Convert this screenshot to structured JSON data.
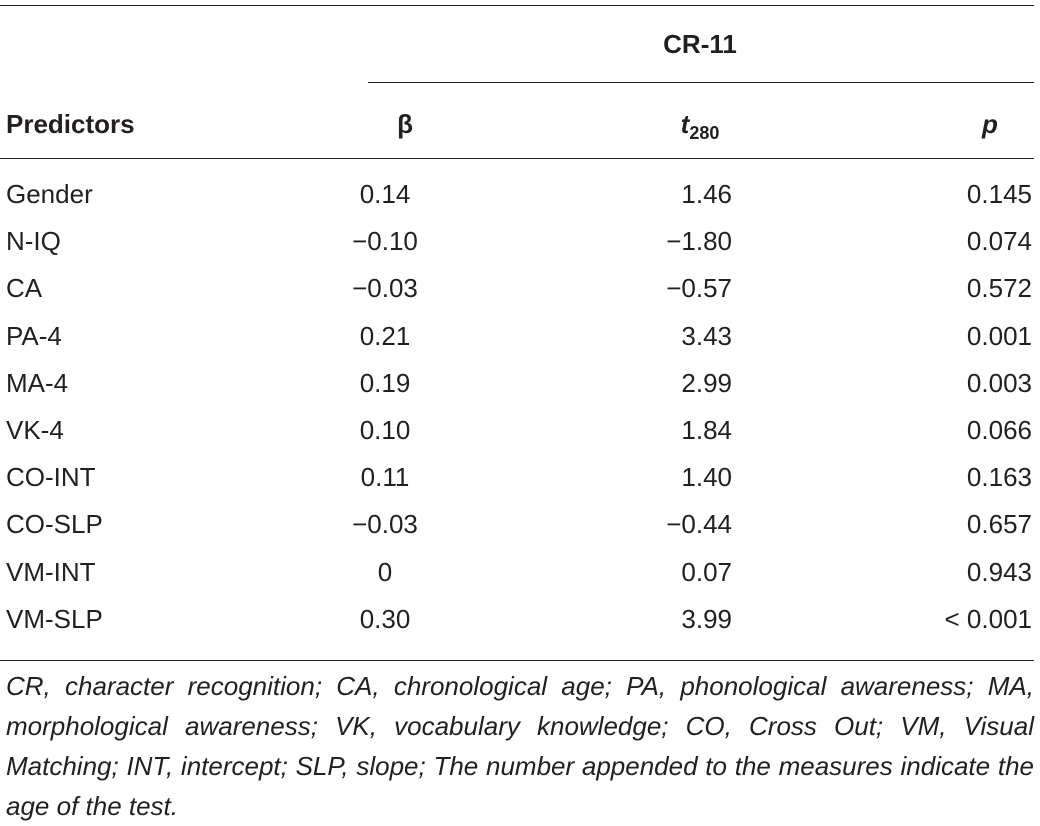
{
  "table": {
    "group_header": "CR-11",
    "columns": {
      "predictors": "Predictors",
      "beta": "β",
      "t": "t",
      "t_sub": "280",
      "p": "p"
    },
    "rows": [
      {
        "predictor": "Gender",
        "beta": "0.14",
        "t": "1.46",
        "p": "0.145"
      },
      {
        "predictor": "N-IQ",
        "beta": "−0.10",
        "t": "−1.80",
        "p": "0.074"
      },
      {
        "predictor": "CA",
        "beta": "−0.03",
        "t": "−0.57",
        "p": "0.572"
      },
      {
        "predictor": "PA-4",
        "beta": "0.21",
        "t": "3.43",
        "p": "0.001"
      },
      {
        "predictor": "MA-4",
        "beta": "0.19",
        "t": "2.99",
        "p": "0.003"
      },
      {
        "predictor": "VK-4",
        "beta": "0.10",
        "t": "1.84",
        "p": "0.066"
      },
      {
        "predictor": "CO-INT",
        "beta": "0.11",
        "t": "1.40",
        "p": "0.163"
      },
      {
        "predictor": "CO-SLP",
        "beta": "−0.03",
        "t": "−0.44",
        "p": "0.657"
      },
      {
        "predictor": "VM-INT",
        "beta": "0",
        "t": "0.07",
        "p": "0.943"
      },
      {
        "predictor": "VM-SLP",
        "beta": "0.30",
        "t": "3.99",
        "p": "< 0.001"
      }
    ],
    "footnote": "CR, character recognition; CA, chronological age; PA, phonological awareness; MA, morphological awareness; VK, vocabulary knowledge; CO, Cross Out; VM, Visual Matching; INT, intercept; SLP, slope; The number appended to the measures indicate the age of the test."
  }
}
